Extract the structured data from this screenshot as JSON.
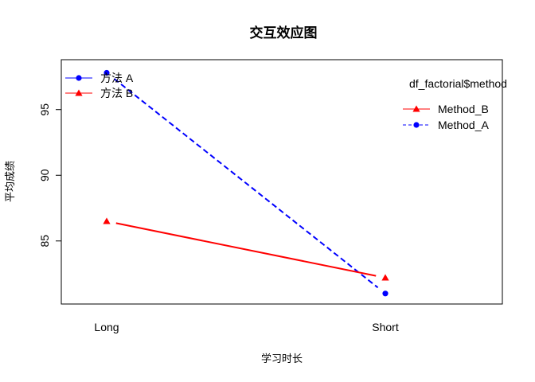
{
  "chart_data": {
    "type": "line",
    "title": "交互效应图",
    "xlabel": "学习时长",
    "ylabel": "平均成绩",
    "categories": [
      "Long",
      "Short"
    ],
    "ylim": [
      80.2,
      98.8
    ],
    "yticks": [
      85,
      90,
      95
    ],
    "grid": false,
    "series": [
      {
        "name": "Method_A",
        "values": [
          97.8,
          81.0
        ],
        "color": "#0000ff",
        "line_style": "dashed",
        "marker": "circle"
      },
      {
        "name": "Method_B",
        "values": [
          86.5,
          82.2
        ],
        "color": "#ff0000",
        "line_style": "solid",
        "marker": "triangle"
      }
    ],
    "legend_top_left": {
      "placement": "top-left",
      "items": [
        {
          "label": "方法 A",
          "color": "#0000ff",
          "marker": "circle"
        },
        {
          "label": "方法 B",
          "color": "#ff0000",
          "marker": "triangle"
        }
      ]
    },
    "legend_right": {
      "placement": "right",
      "title": "df_factorial$method",
      "items": [
        {
          "label": "Method_B",
          "color": "#ff0000",
          "marker": "triangle",
          "line_style": "solid"
        },
        {
          "label": "Method_A",
          "color": "#0000ff",
          "marker": "circle",
          "line_style": "dashed"
        }
      ]
    }
  }
}
